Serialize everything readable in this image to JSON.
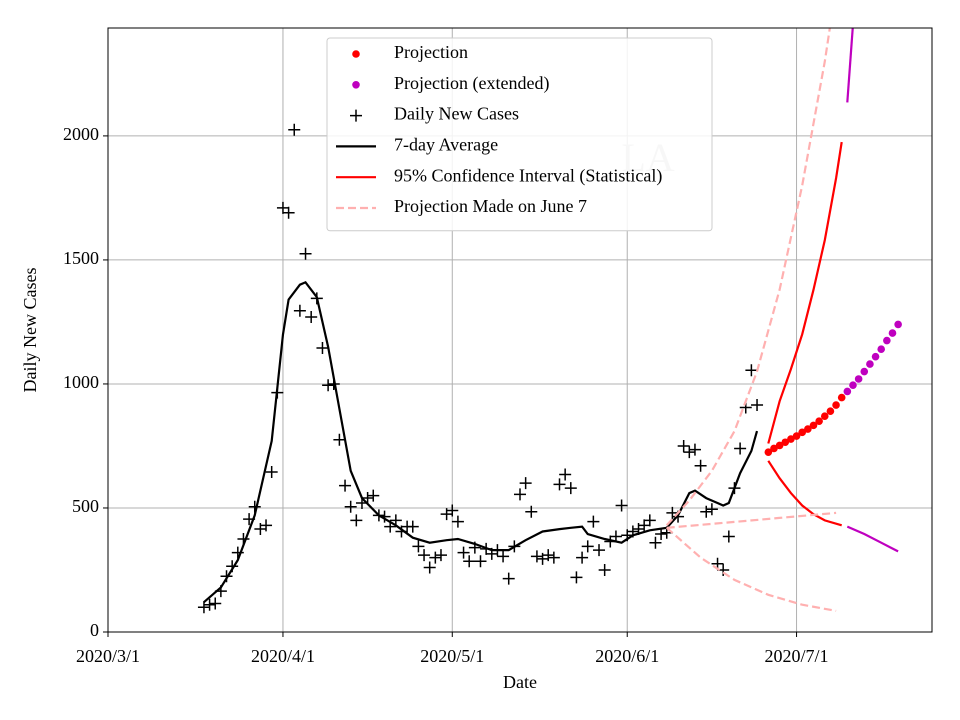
{
  "chart_data": {
    "type": "line",
    "xlabel": "Date",
    "ylabel": "Daily New Cases",
    "annotation": "LA",
    "xlim": [
      "2020-03-01",
      "2020-07-25"
    ],
    "xticks": [
      {
        "value": "2020-03-01",
        "label": "2020/3/1"
      },
      {
        "value": "2020-04-01",
        "label": "2020/4/1"
      },
      {
        "value": "2020-05-01",
        "label": "2020/5/1"
      },
      {
        "value": "2020-06-01",
        "label": "2020/6/1"
      },
      {
        "value": "2020-07-01",
        "label": "2020/7/1"
      }
    ],
    "ylim": [
      0,
      2435
    ],
    "yticks": [
      0,
      500,
      1000,
      1500,
      2000
    ],
    "grid": true,
    "legend": "upper center",
    "series": [
      {
        "name": "Projection",
        "color": "#ff0000",
        "marker": "o",
        "linestyle": null,
        "x": [
          "2020-06-26",
          "2020-06-27",
          "2020-06-28",
          "2020-06-29",
          "2020-06-30",
          "2020-07-01",
          "2020-07-02",
          "2020-07-03",
          "2020-07-04",
          "2020-07-05",
          "2020-07-06",
          "2020-07-07",
          "2020-07-08",
          "2020-07-09"
        ],
        "values": [
          725,
          740,
          752,
          765,
          778,
          790,
          805,
          818,
          833,
          850,
          870,
          890,
          915,
          945
        ]
      },
      {
        "name": "Projection (extended)",
        "color": "#bf00bf",
        "marker": "o",
        "linestyle": null,
        "x": [
          "2020-07-10",
          "2020-07-11",
          "2020-07-12",
          "2020-07-13",
          "2020-07-14",
          "2020-07-15",
          "2020-07-16",
          "2020-07-17",
          "2020-07-18",
          "2020-07-19"
        ],
        "values": [
          970,
          995,
          1020,
          1050,
          1080,
          1110,
          1140,
          1175,
          1205,
          1240
        ]
      },
      {
        "name": "Daily New Cases",
        "color": "#000000",
        "marker": "+",
        "linestyle": null,
        "x": [
          "2020-03-18",
          "2020-03-19",
          "2020-03-20",
          "2020-03-21",
          "2020-03-22",
          "2020-03-23",
          "2020-03-24",
          "2020-03-25",
          "2020-03-26",
          "2020-03-27",
          "2020-03-28",
          "2020-03-29",
          "2020-03-30",
          "2020-03-31",
          "2020-04-01",
          "2020-04-02",
          "2020-04-03",
          "2020-04-04",
          "2020-04-05",
          "2020-04-06",
          "2020-04-07",
          "2020-04-08",
          "2020-04-09",
          "2020-04-10",
          "2020-04-11",
          "2020-04-12",
          "2020-04-13",
          "2020-04-14",
          "2020-04-15",
          "2020-04-16",
          "2020-04-17",
          "2020-04-18",
          "2020-04-19",
          "2020-04-20",
          "2020-04-21",
          "2020-04-22",
          "2020-04-23",
          "2020-04-24",
          "2020-04-25",
          "2020-04-26",
          "2020-04-27",
          "2020-04-28",
          "2020-04-29",
          "2020-04-30",
          "2020-05-01",
          "2020-05-02",
          "2020-05-03",
          "2020-05-04",
          "2020-05-05",
          "2020-05-06",
          "2020-05-07",
          "2020-05-08",
          "2020-05-09",
          "2020-05-10",
          "2020-05-11",
          "2020-05-12",
          "2020-05-13",
          "2020-05-14",
          "2020-05-15",
          "2020-05-16",
          "2020-05-17",
          "2020-05-18",
          "2020-05-19",
          "2020-05-20",
          "2020-05-21",
          "2020-05-22",
          "2020-05-23",
          "2020-05-24",
          "2020-05-25",
          "2020-05-26",
          "2020-05-27",
          "2020-05-28",
          "2020-05-29",
          "2020-05-30",
          "2020-05-31",
          "2020-06-01",
          "2020-06-02",
          "2020-06-03",
          "2020-06-04",
          "2020-06-05",
          "2020-06-06",
          "2020-06-07",
          "2020-06-08",
          "2020-06-09",
          "2020-06-10",
          "2020-06-11",
          "2020-06-12",
          "2020-06-13",
          "2020-06-14",
          "2020-06-15",
          "2020-06-16",
          "2020-06-17",
          "2020-06-18",
          "2020-06-19",
          "2020-06-20",
          "2020-06-21",
          "2020-06-22",
          "2020-06-23",
          "2020-06-24"
        ],
        "values": [
          100,
          110,
          115,
          165,
          225,
          265,
          320,
          375,
          455,
          505,
          415,
          430,
          645,
          965,
          1710,
          1690,
          2025,
          1295,
          1525,
          1270,
          1345,
          1145,
          995,
          1000,
          775,
          590,
          505,
          450,
          520,
          540,
          550,
          470,
          465,
          425,
          450,
          405,
          425,
          425,
          345,
          310,
          260,
          300,
          310,
          475,
          490,
          445,
          320,
          285,
          340,
          285,
          335,
          315,
          330,
          305,
          215,
          345,
          555,
          600,
          485,
          305,
          295,
          310,
          300,
          595,
          635,
          580,
          220,
          300,
          345,
          445,
          330,
          250,
          365,
          385,
          510,
          390,
          405,
          415,
          430,
          450,
          360,
          395,
          400,
          480,
          465,
          750,
          725,
          735,
          670,
          485,
          495,
          275,
          250,
          385,
          580,
          740,
          905,
          1055,
          915
        ]
      },
      {
        "name": "7-day Average",
        "color": "#000000",
        "marker": null,
        "linestyle": "-",
        "x": [
          "2020-03-18",
          "2020-03-21",
          "2020-03-24",
          "2020-03-27",
          "2020-03-30",
          "2020-04-01",
          "2020-04-02",
          "2020-04-04",
          "2020-04-05",
          "2020-04-07",
          "2020-04-09",
          "2020-04-11",
          "2020-04-13",
          "2020-04-15",
          "2020-04-18",
          "2020-04-21",
          "2020-04-24",
          "2020-04-27",
          "2020-04-30",
          "2020-05-02",
          "2020-05-05",
          "2020-05-08",
          "2020-05-11",
          "2020-05-14",
          "2020-05-17",
          "2020-05-20",
          "2020-05-22",
          "2020-05-24",
          "2020-05-25",
          "2020-05-28",
          "2020-05-31",
          "2020-06-02",
          "2020-06-05",
          "2020-06-08",
          "2020-06-10",
          "2020-06-12",
          "2020-06-13",
          "2020-06-15",
          "2020-06-17",
          "2020-06-18",
          "2020-06-19",
          "2020-06-21",
          "2020-06-23",
          "2020-06-24"
        ],
        "values": [
          120,
          180,
          290,
          470,
          770,
          1200,
          1340,
          1400,
          1410,
          1350,
          1150,
          900,
          650,
          540,
          470,
          430,
          380,
          360,
          370,
          375,
          355,
          330,
          330,
          370,
          405,
          415,
          420,
          425,
          395,
          375,
          360,
          390,
          410,
          420,
          470,
          560,
          570,
          540,
          520,
          510,
          520,
          640,
          730,
          810
        ]
      },
      {
        "name": "95% Confidence Interval (Statistical)",
        "color": "#ff0000",
        "marker": null,
        "linestyle": "-",
        "x": [
          "2020-06-26",
          "2020-06-28",
          "2020-06-30",
          "2020-07-02",
          "2020-07-04",
          "2020-07-06",
          "2020-07-08",
          "2020-07-09",
          null,
          "2020-06-26",
          "2020-06-28",
          "2020-06-30",
          "2020-07-02",
          "2020-07-04",
          "2020-07-06",
          "2020-07-09"
        ],
        "values": [
          760,
          930,
          1060,
          1200,
          1380,
          1580,
          1830,
          1975,
          null,
          690,
          620,
          560,
          510,
          475,
          450,
          430
        ]
      },
      {
        "name": "Projection Made on June 7",
        "color": "#ffb0b0",
        "marker": null,
        "linestyle": "--",
        "x": [
          "2020-06-08",
          "2020-06-12",
          "2020-06-16",
          "2020-06-20",
          "2020-06-24",
          "2020-06-28",
          "2020-07-02",
          "2020-07-06",
          "2020-07-07",
          null,
          "2020-06-08",
          "2020-06-18",
          "2020-06-28",
          "2020-07-08",
          null,
          "2020-06-08",
          "2020-06-14",
          "2020-06-20",
          "2020-06-26",
          "2020-07-02",
          "2020-07-08"
        ],
        "values": [
          430,
          530,
          650,
          810,
          1050,
          1380,
          1800,
          2300,
          2450,
          null,
          420,
          440,
          460,
          480,
          null,
          420,
          300,
          210,
          150,
          110,
          85
        ]
      },
      {
        "color": "#bf00bf",
        "marker": null,
        "linestyle": "-",
        "x": [
          "2020-07-10",
          "2020-07-11",
          null,
          "2020-07-10",
          "2020-07-13",
          "2020-07-16",
          "2020-07-19"
        ],
        "values": [
          2135,
          2450,
          null,
          425,
          395,
          360,
          325
        ]
      }
    ]
  }
}
